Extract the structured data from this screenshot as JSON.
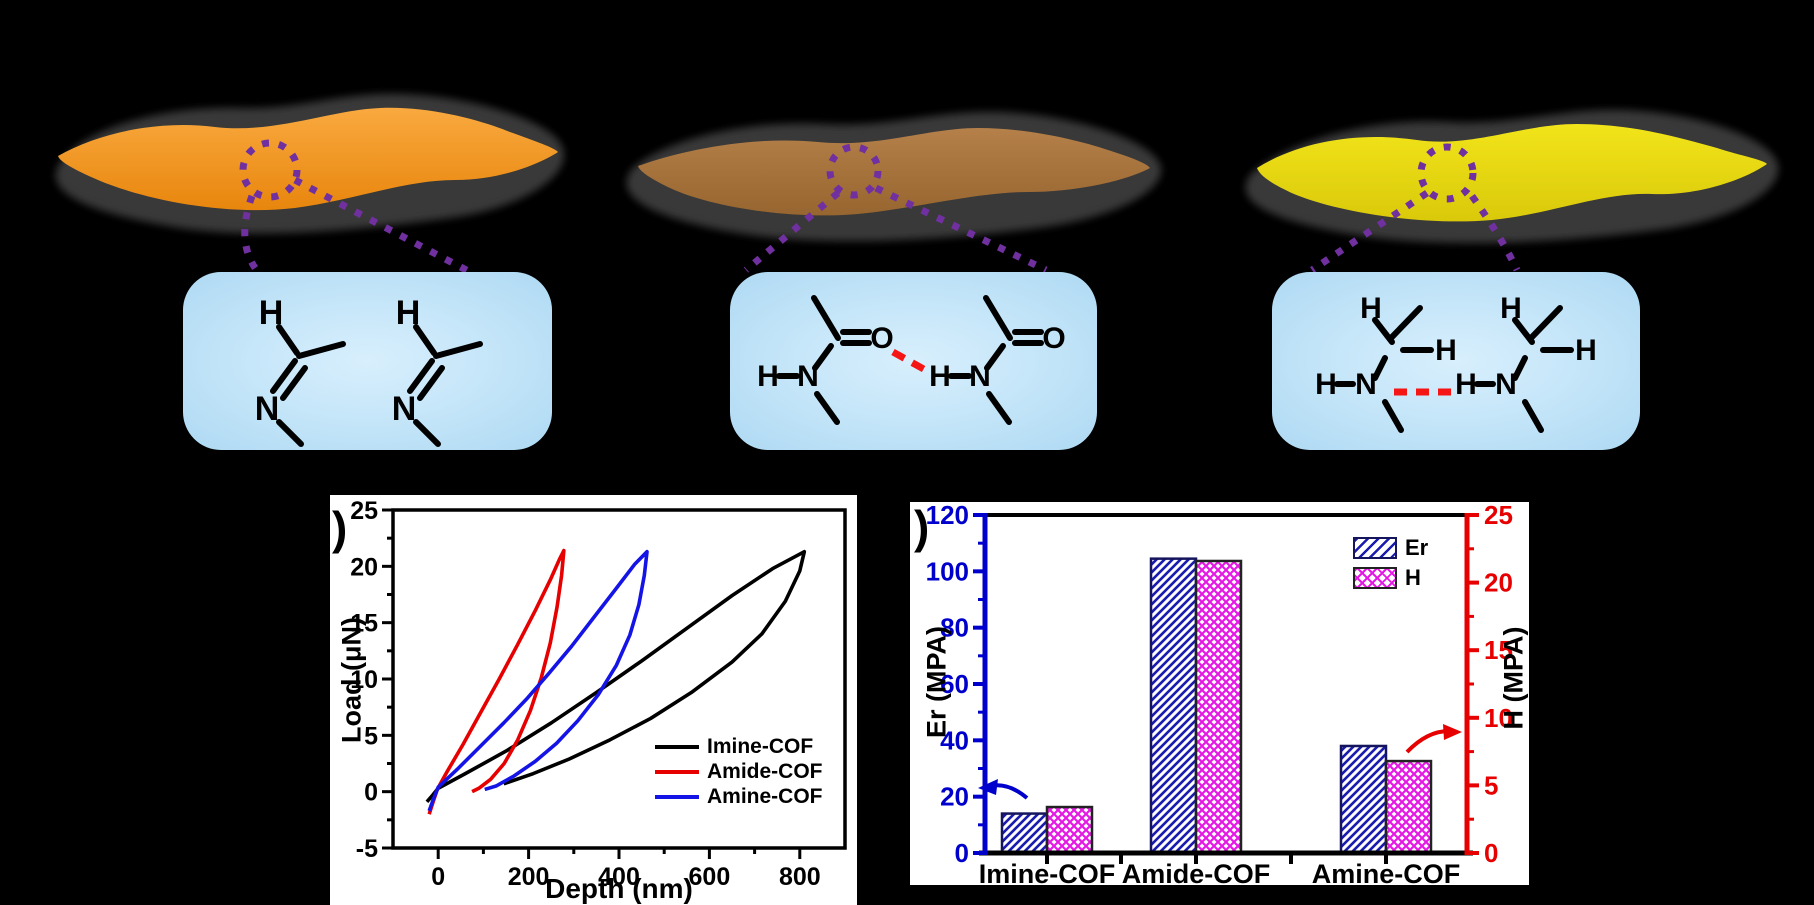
{
  "background": "#000000",
  "membranes": [
    {
      "name": "imine-cof-membrane",
      "color_top": "#F9A93F",
      "color_bottom": "#E8860D",
      "halo": "#3A3A3A"
    },
    {
      "name": "amide-cof-membrane",
      "color_top": "#B5804A",
      "color_bottom": "#97652F",
      "halo": "#3A3A3A"
    },
    {
      "name": "amine-cof-membrane",
      "color_top": "#F2E41A",
      "color_bottom": "#D9C90A",
      "halo": "#3A3A3A"
    }
  ],
  "connector_color": "#7030A0",
  "hbond_color": "#F51515",
  "structures": {
    "imine": {
      "atoms": {
        "h1": "H",
        "n1": "N",
        "h2": "H",
        "n2": "N"
      }
    },
    "amide": {
      "atoms": {
        "h1": "H",
        "n1": "N",
        "o1": "O",
        "h2": "H",
        "n2": "N",
        "o2": "O"
      }
    },
    "amine": {
      "atoms": {
        "t1": "H",
        "r1": "H",
        "h1": "H",
        "n1": "N",
        "t2": "H",
        "r2": "H",
        "h2": "H",
        "n2": "N"
      }
    }
  },
  "panels": {
    "c": {
      "label": ")"
    },
    "d": {
      "label": ")"
    }
  },
  "chart_data": [
    {
      "type": "line",
      "panel": "c",
      "xlabel": "Depth (nm)",
      "ylabel": "Load (μN)",
      "xlim": [
        -100,
        900
      ],
      "ylim": [
        -5,
        25
      ],
      "xticks": [
        0,
        200,
        400,
        600,
        800
      ],
      "xminor": [
        100,
        300,
        500,
        700
      ],
      "yticks": [
        -5,
        0,
        5,
        10,
        15,
        20,
        25
      ],
      "yminor": [
        -2.5,
        2.5,
        7.5,
        12.5,
        17.5,
        22.5
      ],
      "grid": false,
      "legend_position": "right-middle",
      "series": [
        {
          "name": "Imine-COF",
          "color": "#000000",
          "points": [
            [
              -25,
              -0.9
            ],
            [
              -12,
              -0.3
            ],
            [
              0,
              0.3
            ],
            [
              60,
              1.6
            ],
            [
              150,
              3.6
            ],
            [
              250,
              6.1
            ],
            [
              350,
              8.8
            ],
            [
              450,
              11.6
            ],
            [
              550,
              14.5
            ],
            [
              650,
              17.4
            ],
            [
              740,
              19.8
            ],
            [
              810,
              21.3
            ],
            [
              800,
              19.6
            ],
            [
              768,
              16.9
            ],
            [
              716,
              14.0
            ],
            [
              650,
              11.5
            ],
            [
              560,
              8.8
            ],
            [
              470,
              6.5
            ],
            [
              380,
              4.6
            ],
            [
              290,
              2.9
            ],
            [
              210,
              1.6
            ],
            [
              145,
              0.7
            ]
          ]
        },
        {
          "name": "Amide-COF",
          "color": "#E60000",
          "points": [
            [
              -20,
              -2.0
            ],
            [
              -12,
              -1.0
            ],
            [
              -2,
              0.2
            ],
            [
              20,
              1.8
            ],
            [
              55,
              4.2
            ],
            [
              95,
              7.1
            ],
            [
              135,
              10.0
            ],
            [
              175,
              13.0
            ],
            [
              215,
              16.1
            ],
            [
              248,
              18.8
            ],
            [
              268,
              20.6
            ],
            [
              278,
              21.4
            ],
            [
              273,
              19.2
            ],
            [
              263,
              16.4
            ],
            [
              248,
              13.2
            ],
            [
              228,
              10.1
            ],
            [
              204,
              7.2
            ],
            [
              176,
              4.6
            ],
            [
              146,
              2.5
            ],
            [
              116,
              1.1
            ],
            [
              90,
              0.3
            ],
            [
              75,
              0.0
            ]
          ]
        },
        {
          "name": "Amine-COF",
          "color": "#1414E6",
          "points": [
            [
              -20,
              -1.7
            ],
            [
              -10,
              -0.6
            ],
            [
              0,
              0.4
            ],
            [
              45,
              2.1
            ],
            [
              95,
              4.1
            ],
            [
              145,
              6.1
            ],
            [
              195,
              8.2
            ],
            [
              245,
              10.5
            ],
            [
              295,
              12.9
            ],
            [
              345,
              15.5
            ],
            [
              395,
              18.1
            ],
            [
              435,
              20.2
            ],
            [
              462,
              21.3
            ],
            [
              456,
              19.2
            ],
            [
              444,
              16.6
            ],
            [
              424,
              13.9
            ],
            [
              394,
              11.2
            ],
            [
              354,
              8.6
            ],
            [
              309,
              6.3
            ],
            [
              262,
              4.3
            ],
            [
              215,
              2.7
            ],
            [
              168,
              1.4
            ],
            [
              128,
              0.5
            ],
            [
              103,
              0.2
            ]
          ]
        }
      ]
    },
    {
      "type": "bar",
      "panel": "d",
      "categories": [
        "Imine-COF",
        "Amide-COF",
        "Amine-COF"
      ],
      "series": [
        {
          "name": "Er",
          "axis": "left",
          "unit": "MPA",
          "values": [
            14,
            104.5,
            38
          ],
          "color": "#1B1BB0",
          "hatch": "diagonal"
        },
        {
          "name": "H",
          "axis": "right",
          "unit": "MPA",
          "values": [
            3.4,
            21.6,
            6.8
          ],
          "color": "#E519E5",
          "hatch": "cross"
        }
      ],
      "left_axis": {
        "label": "Er (MPA)",
        "color": "#0000CC",
        "ylim": [
          0,
          120
        ],
        "ticks": [
          0,
          20,
          40,
          60,
          80,
          100,
          120
        ],
        "minor_step": 10
      },
      "right_axis": {
        "label": "H (MPA)",
        "color": "#E60000",
        "ylim": [
          0,
          25
        ],
        "ticks": [
          0,
          5,
          10,
          15,
          20,
          25
        ],
        "minor_step": 2.5
      },
      "grid": false,
      "legend_position": "top-right"
    }
  ]
}
